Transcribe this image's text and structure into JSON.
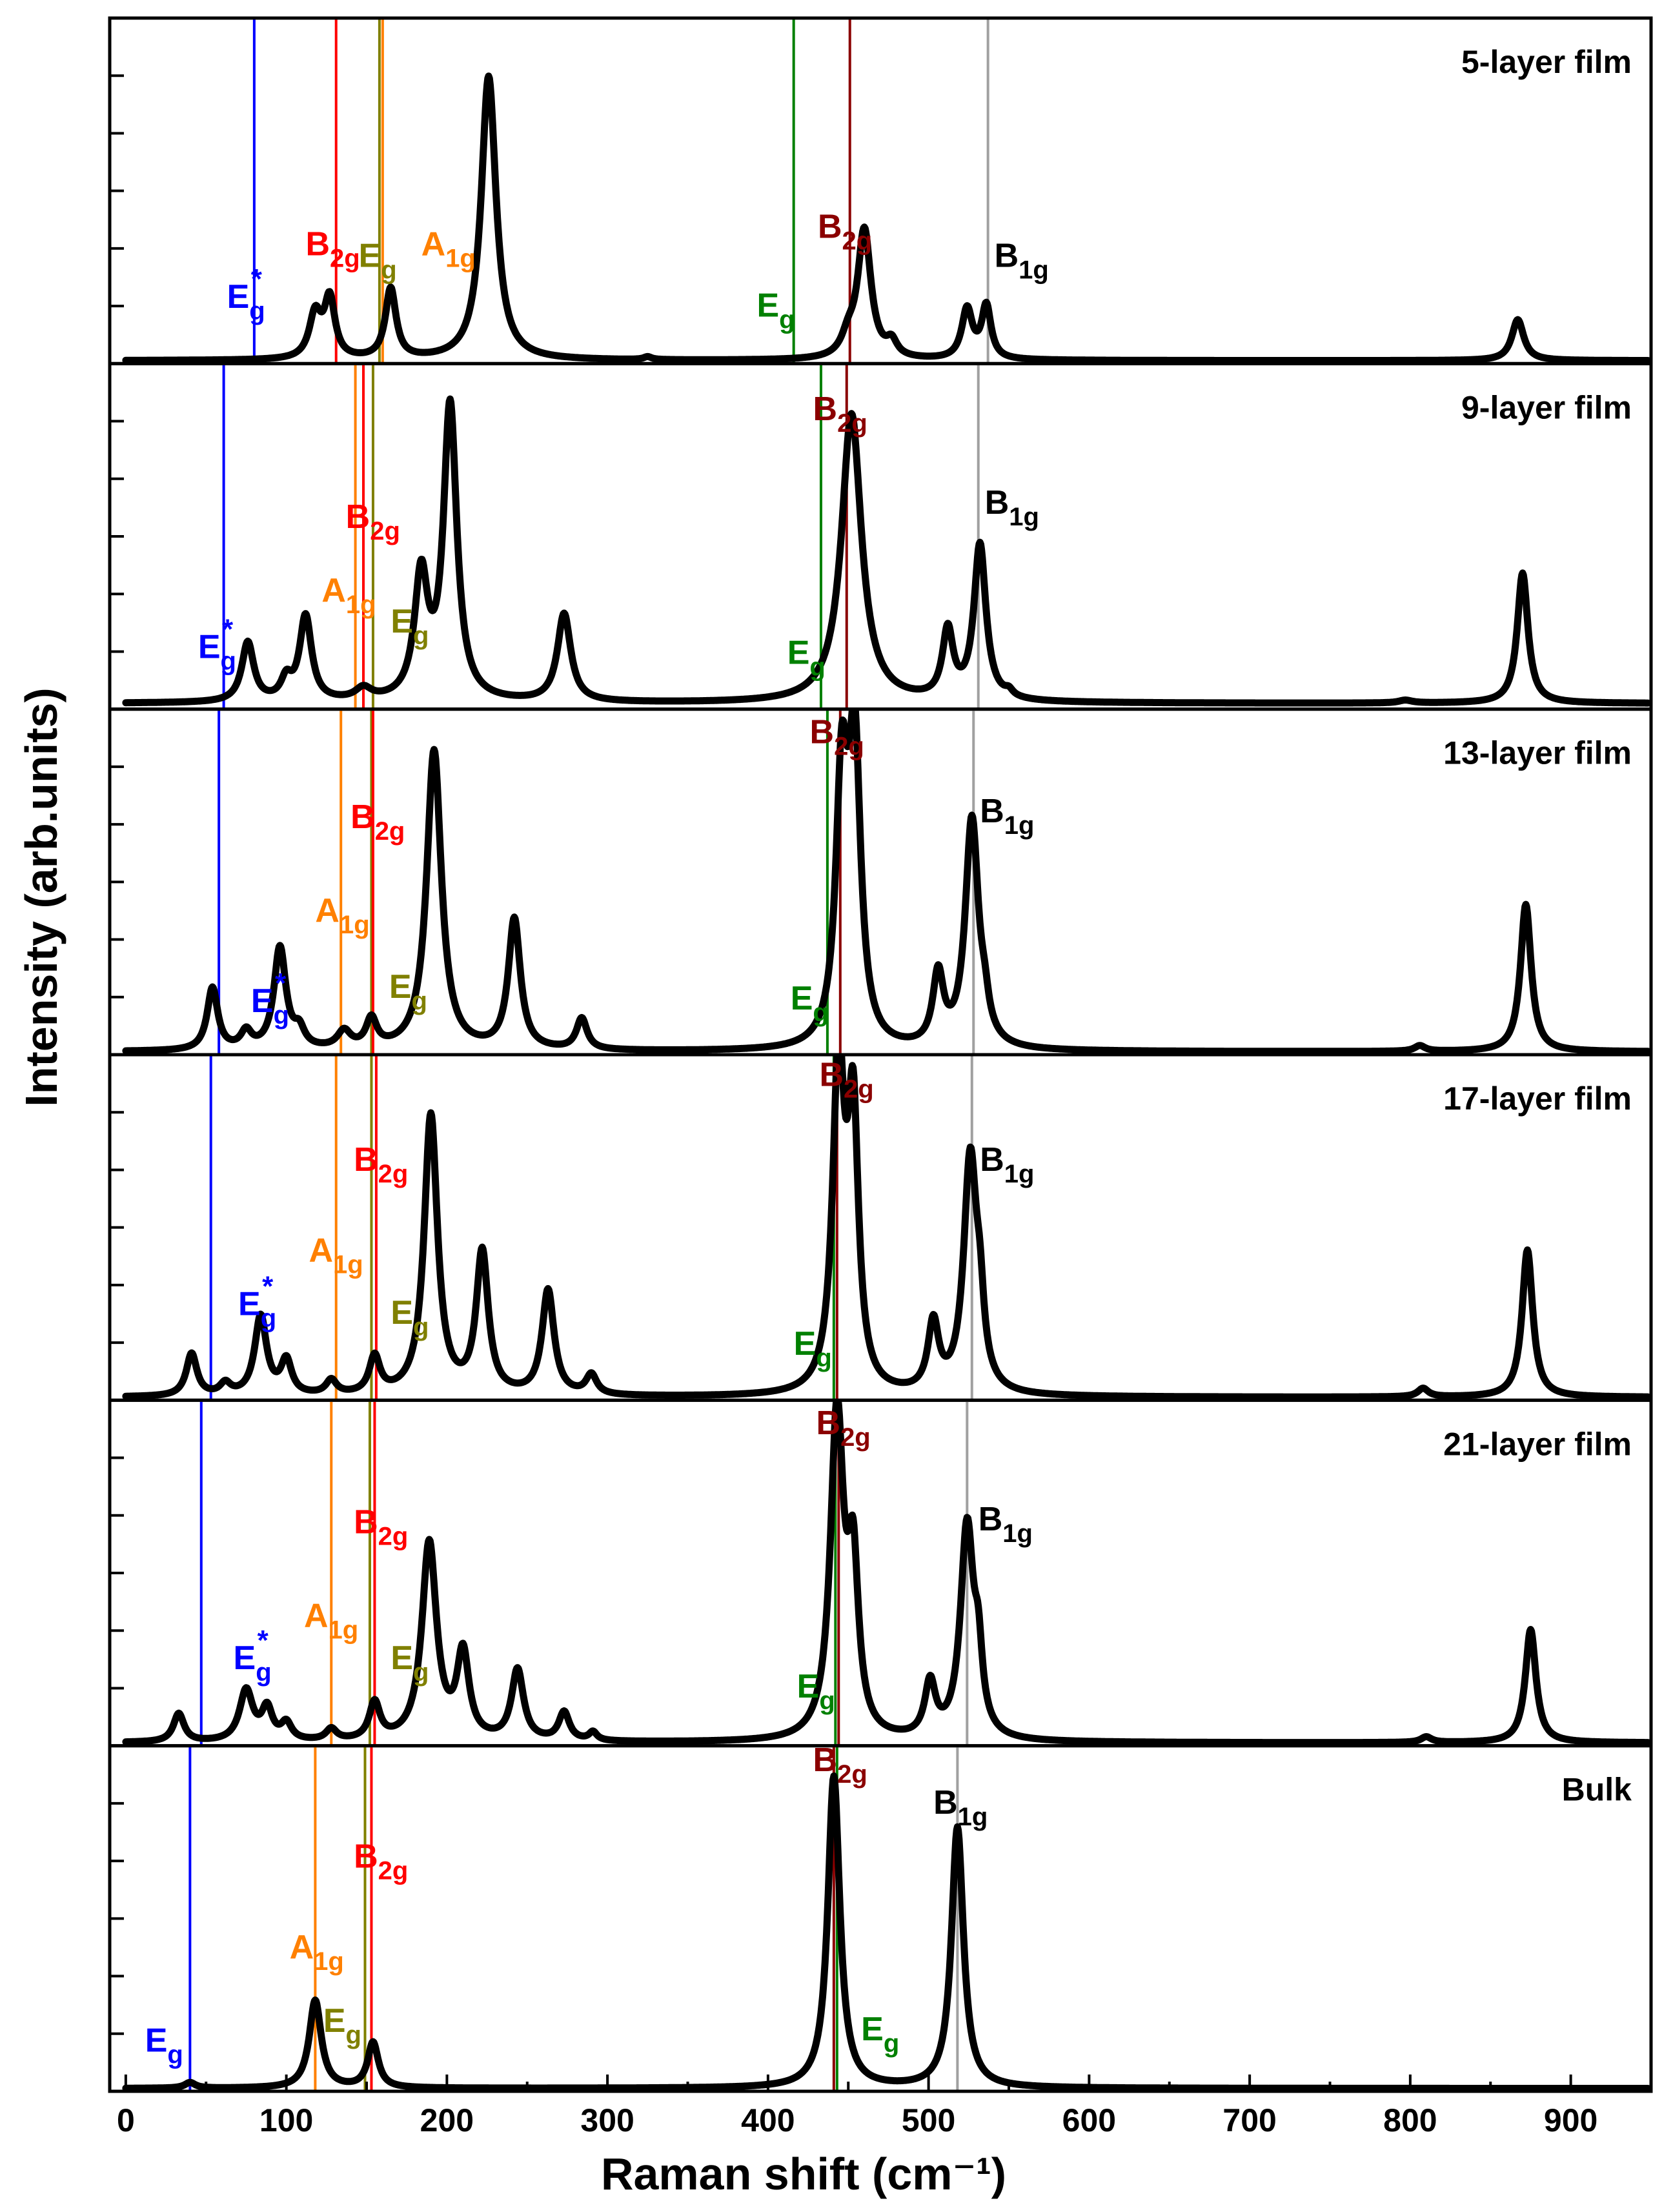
{
  "chart_data": {
    "type": "line",
    "xlabel": "Raman shift (cm⁻¹)",
    "ylabel": "Intensity (arb.units)",
    "xlim": [
      -10,
      950
    ],
    "x_ticks": [
      0,
      100,
      200,
      300,
      400,
      500,
      600,
      700,
      800,
      900
    ],
    "legend": "none",
    "grid": false,
    "colors": {
      "spectrum": "#000000",
      "Eg_star_line": "#0000ff",
      "A1g_line": "#ff8000",
      "B2g_low_line": "#ff0000",
      "Eg_low_line": "#808000",
      "Eg_high_line": "#008000",
      "B2g_high_line": "#8b0000",
      "B1g_line": "#a0a0a0"
    },
    "panels": [
      {
        "name": "5-layer film",
        "ymax": 1.18,
        "baseline": 0.01,
        "peaks": [
          [
            118,
            0.15,
            4.5
          ],
          [
            127,
            0.2,
            4
          ],
          [
            165,
            0.24,
            4
          ],
          [
            226,
            0.97,
            5.5
          ],
          [
            325,
            0.01,
            3
          ],
          [
            450,
            0.06,
            5
          ],
          [
            460,
            0.44,
            5
          ],
          [
            477,
            0.05,
            4
          ],
          [
            524,
            0.17,
            4
          ],
          [
            536,
            0.18,
            3.5
          ],
          [
            867,
            0.14,
            4.5
          ]
        ],
        "lines": [
          {
            "x": 80,
            "color": "#0000ff"
          },
          {
            "x": 131,
            "color": "#ff0000"
          },
          {
            "x": 158,
            "color": "#808000"
          },
          {
            "x": 160,
            "color": "#ff8000"
          },
          {
            "x": 416,
            "color": "#008000"
          },
          {
            "x": 451,
            "color": "#8b0000"
          },
          {
            "x": 537,
            "color": "#a0a0a0"
          }
        ],
        "labels": [
          {
            "base": "E",
            "sub": "g",
            "sup": "*",
            "color": "#0000ff",
            "x": 63,
            "y": 0.19
          },
          {
            "base": "B",
            "sub": "2g",
            "sup": "",
            "color": "#ff0000",
            "x": 112,
            "y": 0.37
          },
          {
            "base": "E",
            "sub": "g",
            "sup": "",
            "color": "#808000",
            "x": 145,
            "y": 0.33
          },
          {
            "base": "A",
            "sub": "1g",
            "sup": "",
            "color": "#ff8000",
            "x": 184,
            "y": 0.37
          },
          {
            "base": "E",
            "sub": "g",
            "sup": "",
            "color": "#008000",
            "x": 393,
            "y": 0.16
          },
          {
            "base": "B",
            "sub": "2g",
            "sup": "",
            "color": "#8b0000",
            "x": 431,
            "y": 0.43
          },
          {
            "base": "B",
            "sub": "1g",
            "sup": "",
            "color": "#000000",
            "x": 541,
            "y": 0.33
          }
        ]
      },
      {
        "name": "9-layer film",
        "ymax": 1.22,
        "baseline": 0.02,
        "peaks": [
          [
            76,
            0.21,
            4.5
          ],
          [
            100,
            0.07,
            4
          ],
          [
            112,
            0.3,
            4.5
          ],
          [
            148,
            0.04,
            6
          ],
          [
            184,
            0.43,
            5
          ],
          [
            202,
            1.04,
            5
          ],
          [
            273,
            0.31,
            5
          ],
          [
            452,
            1.02,
            7.5
          ],
          [
            512,
            0.24,
            4
          ],
          [
            532,
            0.55,
            4.5
          ],
          [
            550,
            0.02,
            3
          ],
          [
            797,
            0.01,
            5
          ],
          [
            870,
            0.46,
            4
          ]
        ],
        "lines": [
          {
            "x": 61,
            "color": "#0000ff"
          },
          {
            "x": 143,
            "color": "#ff8000"
          },
          {
            "x": 148,
            "color": "#ff0000"
          },
          {
            "x": 154,
            "color": "#808000"
          },
          {
            "x": 433,
            "color": "#008000"
          },
          {
            "x": 449,
            "color": "#8b0000"
          },
          {
            "x": 531,
            "color": "#a0a0a0"
          }
        ],
        "labels": [
          {
            "base": "E",
            "sub": "g",
            "sup": "*",
            "color": "#0000ff",
            "x": 45,
            "y": 0.18
          },
          {
            "base": "B",
            "sub": "2g",
            "sup": "",
            "color": "#ff0000",
            "x": 137,
            "y": 0.64
          },
          {
            "base": "A",
            "sub": "1g",
            "sup": "",
            "color": "#ff8000",
            "x": 122,
            "y": 0.38
          },
          {
            "base": "E",
            "sub": "g",
            "sup": "",
            "color": "#808000",
            "x": 165,
            "y": 0.27
          },
          {
            "base": "E",
            "sub": "g",
            "sup": "",
            "color": "#008000",
            "x": 412,
            "y": 0.16
          },
          {
            "base": "B",
            "sub": "2g",
            "sup": "",
            "color": "#8b0000",
            "x": 428,
            "y": 1.02
          },
          {
            "base": "B",
            "sub": "1g",
            "sup": "",
            "color": "#000000",
            "x": 535,
            "y": 0.69
          }
        ]
      },
      {
        "name": "13-layer film",
        "ymax": 1.22,
        "baseline": 0.01,
        "peaks": [
          [
            54,
            0.22,
            4
          ],
          [
            75,
            0.06,
            4
          ],
          [
            96,
            0.36,
            4.5
          ],
          [
            108,
            0.06,
            4
          ],
          [
            136,
            0.06,
            5
          ],
          [
            153,
            0.1,
            4
          ],
          [
            192,
            1.06,
            5.5
          ],
          [
            242,
            0.46,
            4.5
          ],
          [
            284,
            0.11,
            4
          ],
          [
            446,
            0.91,
            4.5
          ],
          [
            454,
            1.01,
            4.5
          ],
          [
            506,
            0.25,
            4
          ],
          [
            527,
            0.81,
            5
          ],
          [
            535,
            0.08,
            3
          ],
          [
            806,
            0.02,
            4
          ],
          [
            872,
            0.52,
            4
          ]
        ],
        "lines": [
          {
            "x": 58,
            "color": "#0000ff"
          },
          {
            "x": 134,
            "color": "#ff8000"
          },
          {
            "x": 153,
            "color": "#808000"
          },
          {
            "x": 154,
            "color": "#ff0000"
          },
          {
            "x": 437,
            "color": "#008000"
          },
          {
            "x": 445,
            "color": "#8b0000"
          },
          {
            "x": 528,
            "color": "#a0a0a0"
          }
        ],
        "labels": [
          {
            "base": "E",
            "sub": "g",
            "sup": "*",
            "color": "#0000ff",
            "x": 78,
            "y": 0.15
          },
          {
            "base": "A",
            "sub": "1g",
            "sup": "",
            "color": "#ff8000",
            "x": 118,
            "y": 0.47
          },
          {
            "base": "B",
            "sub": "2g",
            "sup": "",
            "color": "#ff0000",
            "x": 140,
            "y": 0.8
          },
          {
            "base": "E",
            "sub": "g",
            "sup": "",
            "color": "#808000",
            "x": 164,
            "y": 0.2
          },
          {
            "base": "E",
            "sub": "g",
            "sup": "",
            "color": "#008000",
            "x": 414,
            "y": 0.16
          },
          {
            "base": "B",
            "sub": "2g",
            "sup": "",
            "color": "#8b0000",
            "x": 426,
            "y": 1.1
          },
          {
            "base": "B",
            "sub": "1g",
            "sup": "",
            "color": "#000000",
            "x": 532,
            "y": 0.82
          }
        ]
      },
      {
        "name": "17-layer film",
        "ymax": 1.22,
        "baseline": 0.01,
        "peaks": [
          [
            41,
            0.15,
            4
          ],
          [
            62,
            0.04,
            4
          ],
          [
            84,
            0.28,
            4.5
          ],
          [
            100,
            0.12,
            4
          ],
          [
            128,
            0.05,
            4
          ],
          [
            155,
            0.13,
            4
          ],
          [
            190,
            0.99,
            5
          ],
          [
            222,
            0.5,
            4.5
          ],
          [
            263,
            0.37,
            4.5
          ],
          [
            290,
            0.07,
            4
          ],
          [
            444,
            1.14,
            4.5
          ],
          [
            453,
            0.93,
            4
          ],
          [
            503,
            0.24,
            4
          ],
          [
            526,
            0.83,
            5
          ],
          [
            532,
            0.2,
            3
          ],
          [
            808,
            0.03,
            4
          ],
          [
            873,
            0.52,
            4
          ]
        ],
        "lines": [
          {
            "x": 53,
            "color": "#0000ff"
          },
          {
            "x": 131,
            "color": "#ff8000"
          },
          {
            "x": 153,
            "color": "#808000"
          },
          {
            "x": 156,
            "color": "#ff0000"
          },
          {
            "x": 441,
            "color": "#008000"
          },
          {
            "x": 443,
            "color": "#8b0000"
          },
          {
            "x": 527,
            "color": "#a0a0a0"
          }
        ],
        "labels": [
          {
            "base": "E",
            "sub": "g",
            "sup": "*",
            "color": "#0000ff",
            "x": 70,
            "y": 0.3
          },
          {
            "base": "A",
            "sub": "1g",
            "sup": "",
            "color": "#ff8000",
            "x": 114,
            "y": 0.49
          },
          {
            "base": "B",
            "sub": "2g",
            "sup": "",
            "color": "#ff0000",
            "x": 142,
            "y": 0.81
          },
          {
            "base": "E",
            "sub": "g",
            "sup": "",
            "color": "#808000",
            "x": 165,
            "y": 0.27
          },
          {
            "base": "E",
            "sub": "g",
            "sup": "",
            "color": "#008000",
            "x": 416,
            "y": 0.16
          },
          {
            "base": "B",
            "sub": "2g",
            "sup": "",
            "color": "#8b0000",
            "x": 432,
            "y": 1.11
          },
          {
            "base": "B",
            "sub": "1g",
            "sup": "",
            "color": "#000000",
            "x": 532,
            "y": 0.81
          }
        ]
      },
      {
        "name": "21-layer film",
        "ymax": 1.22,
        "baseline": 0.01,
        "peaks": [
          [
            33,
            0.1,
            4
          ],
          [
            75,
            0.18,
            5
          ],
          [
            88,
            0.11,
            4
          ],
          [
            100,
            0.06,
            4
          ],
          [
            128,
            0.04,
            4
          ],
          [
            155,
            0.13,
            4
          ],
          [
            189,
            0.7,
            5.5
          ],
          [
            210,
            0.3,
            4.5
          ],
          [
            244,
            0.25,
            4.5
          ],
          [
            273,
            0.1,
            4
          ],
          [
            291,
            0.03,
            3
          ],
          [
            443,
            1.14,
            5
          ],
          [
            453,
            0.56,
            4
          ],
          [
            501,
            0.19,
            4
          ],
          [
            524,
            0.75,
            5
          ],
          [
            531,
            0.22,
            3
          ],
          [
            810,
            0.02,
            4
          ],
          [
            875,
            0.4,
            4
          ]
        ],
        "lines": [
          {
            "x": 47,
            "color": "#0000ff"
          },
          {
            "x": 128,
            "color": "#ff8000"
          },
          {
            "x": 152,
            "color": "#808000"
          },
          {
            "x": 155,
            "color": "#ff0000"
          },
          {
            "x": 442,
            "color": "#008000"
          },
          {
            "x": 444,
            "color": "#8b0000"
          },
          {
            "x": 524,
            "color": "#a0a0a0"
          }
        ],
        "labels": [
          {
            "base": "E",
            "sub": "g",
            "sup": "*",
            "color": "#0000ff",
            "x": 67,
            "y": 0.27
          },
          {
            "base": "A",
            "sub": "1g",
            "sup": "",
            "color": "#ff8000",
            "x": 111,
            "y": 0.42
          },
          {
            "base": "B",
            "sub": "2g",
            "sup": "",
            "color": "#ff0000",
            "x": 142,
            "y": 0.75
          },
          {
            "base": "E",
            "sub": "g",
            "sup": "",
            "color": "#808000",
            "x": 165,
            "y": 0.27
          },
          {
            "base": "E",
            "sub": "g",
            "sup": "",
            "color": "#008000",
            "x": 418,
            "y": 0.17
          },
          {
            "base": "B",
            "sub": "2g",
            "sup": "",
            "color": "#8b0000",
            "x": 430,
            "y": 1.1
          },
          {
            "base": "B",
            "sub": "1g",
            "sup": "",
            "color": "#000000",
            "x": 531,
            "y": 0.76
          }
        ]
      },
      {
        "name": "Bulk",
        "ymax": 1.22,
        "baseline": 0.01,
        "peaks": [
          [
            40,
            0.02,
            4
          ],
          [
            118,
            0.31,
            4.5
          ],
          [
            154,
            0.16,
            4
          ],
          [
            441,
            1.1,
            4.5
          ],
          [
            518,
            0.92,
            4.5
          ]
        ],
        "lines": [
          {
            "x": 40,
            "color": "#0000ff"
          },
          {
            "x": 118,
            "color": "#ff8000"
          },
          {
            "x": 149,
            "color": "#808000"
          },
          {
            "x": 153,
            "color": "#ff0000"
          },
          {
            "x": 441,
            "color": "#8b0000"
          },
          {
            "x": 443,
            "color": "#008000"
          },
          {
            "x": 518,
            "color": "#a0a0a0"
          }
        ],
        "labels": [
          {
            "base": "E",
            "sub": "g",
            "sup": "",
            "color": "#0000ff",
            "x": 12,
            "y": 0.14
          },
          {
            "base": "A",
            "sub": "1g",
            "sup": "",
            "color": "#ff8000",
            "x": 102,
            "y": 0.47
          },
          {
            "base": "B",
            "sub": "2g",
            "sup": "",
            "color": "#ff0000",
            "x": 142,
            "y": 0.79
          },
          {
            "base": "E",
            "sub": "g",
            "sup": "",
            "color": "#808000",
            "x": 123,
            "y": 0.21
          },
          {
            "base": "E",
            "sub": "g",
            "sup": "",
            "color": "#008000",
            "x": 458,
            "y": 0.18
          },
          {
            "base": "B",
            "sub": "2g",
            "sup": "",
            "color": "#8b0000",
            "x": 428,
            "y": 1.13
          },
          {
            "base": "B",
            "sub": "1g",
            "sup": "",
            "color": "#000000",
            "x": 503,
            "y": 0.98
          }
        ]
      }
    ]
  }
}
